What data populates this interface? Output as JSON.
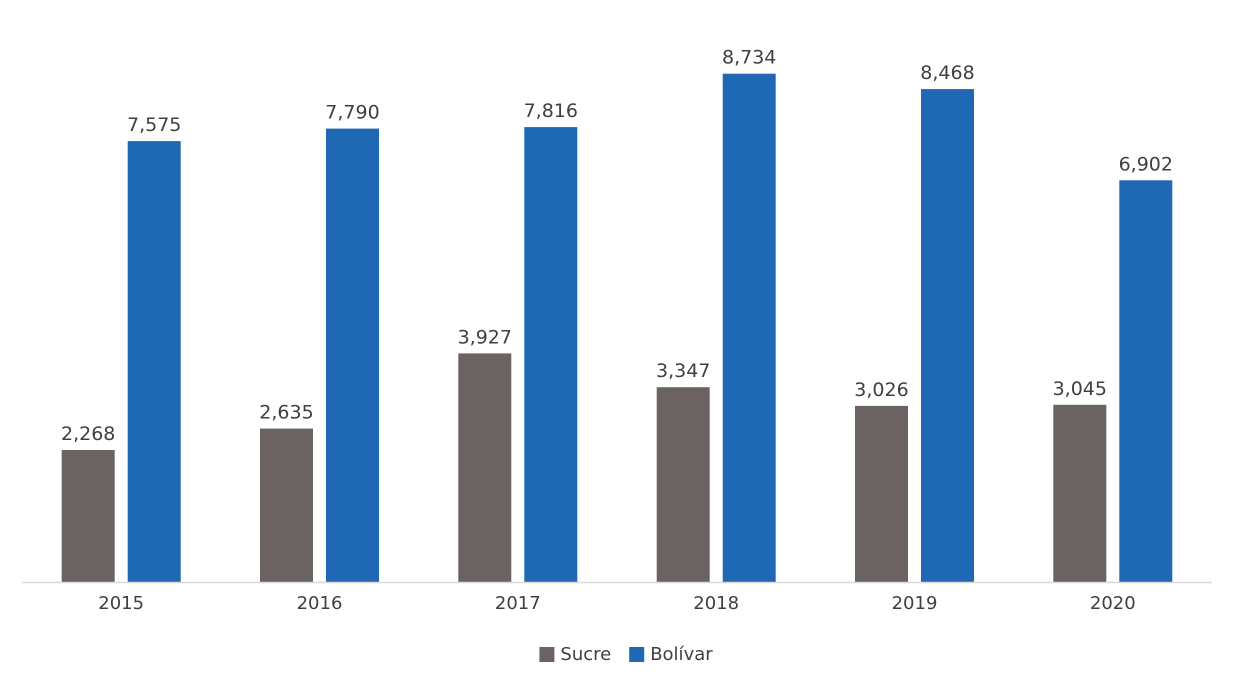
{
  "chart_data": {
    "type": "bar",
    "categories": [
      "2015",
      "2016",
      "2017",
      "2018",
      "2019",
      "2020"
    ],
    "series": [
      {
        "name": "Sucre",
        "color": "#6b6361",
        "values": [
          2268,
          2635,
          3927,
          3347,
          3026,
          3045
        ],
        "labels": [
          "2,268",
          "2,635",
          "3,927",
          "3,347",
          "3,026",
          "3,045"
        ]
      },
      {
        "name": "Bolívar",
        "color": "#1f69b4",
        "values": [
          7575,
          7790,
          7816,
          8734,
          8468,
          6902
        ],
        "labels": [
          "7,575",
          "7,790",
          "7,816",
          "8,734",
          "8,468",
          "6,902"
        ]
      }
    ],
    "title": "",
    "xlabel": "",
    "ylabel": "",
    "ylim": [
      0,
      8900
    ],
    "grid": false,
    "legend_position": "bottom-center",
    "axis_color": "#d9d9d9"
  }
}
